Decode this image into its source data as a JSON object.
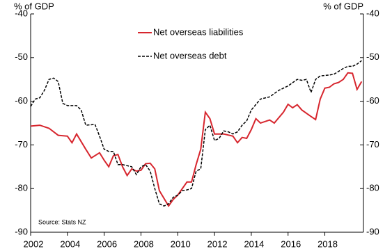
{
  "chart_data": {
    "type": "line",
    "y_label": "% of GDP",
    "y2_label": "% of GDP",
    "annotation": "Source: Stats NZ",
    "xlim": [
      2002,
      2020.1
    ],
    "xticks": [
      2002,
      2004,
      2006,
      2008,
      2010,
      2012,
      2014,
      2016,
      2018
    ],
    "ylim": [
      -90,
      -40
    ],
    "yticks": [
      -90,
      -80,
      -70,
      -60,
      -50,
      -40
    ],
    "y2lim": [
      -90,
      -40
    ],
    "y2ticks": [
      -90,
      -80,
      -70,
      -60,
      -50,
      -40
    ],
    "legend": "top",
    "series": [
      {
        "name": "Net overseas liabilities",
        "color": "#d7262e",
        "dash": false,
        "x": [
          2002.0,
          2002.5,
          2003.0,
          2003.5,
          2004.0,
          2004.25,
          2004.5,
          2005.0,
          2005.3,
          2005.75,
          2006.0,
          2006.25,
          2006.5,
          2006.75,
          2007.0,
          2007.25,
          2007.5,
          2007.75,
          2008.0,
          2008.25,
          2008.5,
          2008.75,
          2009.0,
          2009.5,
          2009.75,
          2010.0,
          2010.5,
          2010.75,
          2011.0,
          2011.25,
          2011.5,
          2011.75,
          2012.0,
          2012.5,
          2013.0,
          2013.25,
          2013.5,
          2013.75,
          2014.0,
          2014.25,
          2014.5,
          2015.0,
          2015.25,
          2015.75,
          2016.0,
          2016.25,
          2016.5,
          2016.75,
          2017.25,
          2017.5,
          2017.75,
          2018.0,
          2018.25,
          2018.5,
          2018.75,
          2019.0,
          2019.25,
          2019.5,
          2019.75,
          2020.0
        ],
        "values": [
          -65.7,
          -65.5,
          -66.2,
          -67.8,
          -68.0,
          -69.5,
          -67.5,
          -71,
          -73,
          -71.8,
          -73.5,
          -75,
          -72.5,
          -72.2,
          -75,
          -77,
          -75.5,
          -76,
          -75.8,
          -74.3,
          -74.2,
          -75.5,
          -80.5,
          -84,
          -82.5,
          -81.5,
          -78.5,
          -78.5,
          -74.5,
          -71,
          -62.5,
          -64,
          -67.5,
          -67.5,
          -68,
          -69.5,
          -68.3,
          -68.5,
          -66.5,
          -64,
          -65,
          -64.3,
          -65,
          -62.5,
          -60.7,
          -61.5,
          -60.8,
          -62,
          -63.5,
          -64.2,
          -59.5,
          -57,
          -56.8,
          -56,
          -55.7,
          -55,
          -53.5,
          -53.6,
          -57.3,
          -55.5
        ]
      },
      {
        "name": "Net overseas debt",
        "color": "#000000",
        "dash": true,
        "x": [
          2002.0,
          2002.25,
          2002.5,
          2002.75,
          2003.0,
          2003.25,
          2003.5,
          2003.75,
          2004.0,
          2004.5,
          2004.75,
          2005.0,
          2005.5,
          2005.75,
          2006.0,
          2006.25,
          2006.5,
          2006.75,
          2007.0,
          2007.5,
          2007.75,
          2008.0,
          2008.25,
          2008.5,
          2008.75,
          2009.0,
          2009.25,
          2009.5,
          2009.75,
          2010.0,
          2010.25,
          2010.5,
          2010.75,
          2011.0,
          2011.25,
          2011.5,
          2011.75,
          2012.0,
          2012.25,
          2012.5,
          2012.75,
          2013.0,
          2013.25,
          2013.5,
          2013.75,
          2014.0,
          2014.5,
          2015.0,
          2015.5,
          2016.0,
          2016.5,
          2016.75,
          2017.0,
          2017.25,
          2017.5,
          2017.75,
          2018.25,
          2018.5,
          2019.0,
          2019.25,
          2019.5,
          2019.75,
          2020.0
        ],
        "values": [
          -61.2,
          -59.5,
          -59.2,
          -57.5,
          -55,
          -54.7,
          -55.5,
          -60.5,
          -61,
          -61,
          -62,
          -65.5,
          -65.3,
          -68,
          -71,
          -71.5,
          -71.5,
          -74.5,
          -74.5,
          -75,
          -76.8,
          -75,
          -74.5,
          -76,
          -80,
          -83.5,
          -84,
          -83.5,
          -82,
          -81.5,
          -80.5,
          -80.3,
          -80,
          -76,
          -75.5,
          -66.5,
          -65.5,
          -69,
          -68.5,
          -66.8,
          -67,
          -67.5,
          -67,
          -65.5,
          -64.5,
          -62,
          -59.5,
          -59,
          -57.5,
          -56.5,
          -55,
          -55.2,
          -55,
          -58,
          -55,
          -54.2,
          -54,
          -53.8,
          -52.5,
          -52,
          -52,
          -51.5,
          -50.7
        ]
      }
    ]
  }
}
